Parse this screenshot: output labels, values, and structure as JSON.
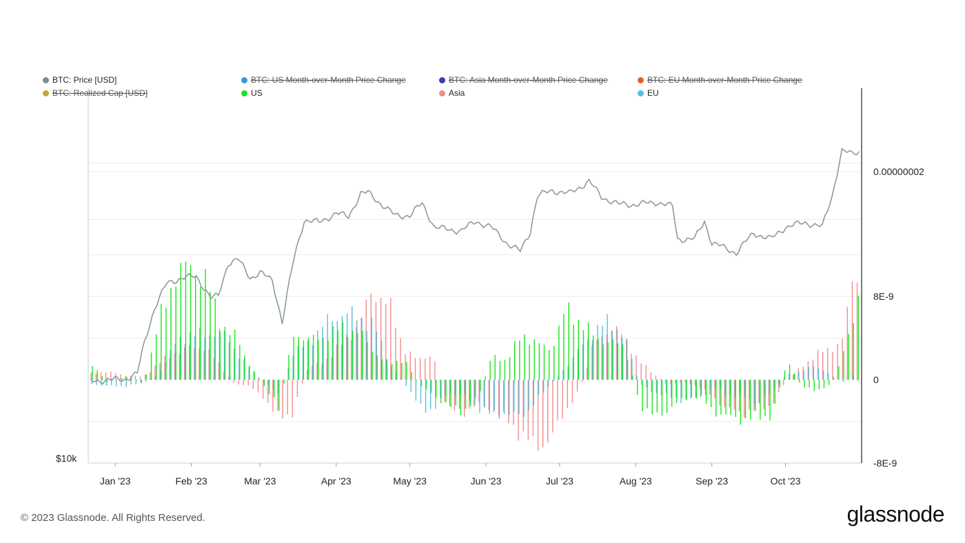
{
  "legend": {
    "items": [
      {
        "label": "BTC: Price [USD]",
        "color": "#7f8c8d",
        "struck": false
      },
      {
        "label": "BTC: US Month-over-Month Price Change",
        "color": "#3498db",
        "struck": true
      },
      {
        "label": "BTC: Asia Month-over-Month Price Change",
        "color": "#3b3bb8",
        "struck": true
      },
      {
        "label": "BTC: EU Month-over-Month Price Change",
        "color": "#e8601c",
        "struck": true
      },
      {
        "label": "BTC: Realized Cap [USD]",
        "color": "#c8a832",
        "struck": true
      },
      {
        "label": "US",
        "color": "#19e619",
        "struck": false
      },
      {
        "label": "Asia",
        "color": "#f08c8c",
        "struck": false
      },
      {
        "label": "EU",
        "color": "#5bbcdc",
        "struck": false
      }
    ]
  },
  "footer": {
    "copyright": "© 2023 Glassnode. All Rights Reserved.",
    "brand": "glassnode"
  },
  "chart_data": {
    "type": "bar",
    "title": "",
    "x_ticks": [
      "Jan '23",
      "Feb '23",
      "Mar '23",
      "Apr '23",
      "May '23",
      "Jun '23",
      "Jul '23",
      "Aug '23",
      "Sep '23",
      "Oct '23"
    ],
    "left_axis": {
      "label": "$10k",
      "scale": "log"
    },
    "right_axis": {
      "ticks": [
        "0.00000002",
        "8E-9",
        "0",
        "-8E-9"
      ],
      "range": [
        -8e-09,
        2.8e-08
      ]
    },
    "colors": {
      "price": "#8c9aa0",
      "us": "#19e619",
      "asia": "#f08c8c",
      "eu": "#5bbcdc",
      "grid": "#ececec",
      "axis": "#222222"
    },
    "price_series": {
      "name": "BTC: Price [USD]",
      "x": [
        "2022-12-22",
        "2022-12-28",
        "2023-01-05",
        "2023-01-10",
        "2023-01-13",
        "2023-01-17",
        "2023-01-22",
        "2023-01-28",
        "2023-02-03",
        "2023-02-09",
        "2023-02-12",
        "2023-02-16",
        "2023-02-20",
        "2023-02-25",
        "2023-03-01",
        "2023-03-06",
        "2023-03-10",
        "2023-03-12",
        "2023-03-15",
        "2023-03-19",
        "2023-03-25",
        "2023-04-01",
        "2023-04-06",
        "2023-04-11",
        "2023-04-14",
        "2023-04-19",
        "2023-04-25",
        "2023-05-01",
        "2023-05-06",
        "2023-05-11",
        "2023-05-16",
        "2023-05-22",
        "2023-05-28",
        "2023-06-03",
        "2023-06-10",
        "2023-06-15",
        "2023-06-19",
        "2023-06-22",
        "2023-06-28",
        "2023-07-05",
        "2023-07-13",
        "2023-07-18",
        "2023-07-25",
        "2023-08-01",
        "2023-08-10",
        "2023-08-16",
        "2023-08-18",
        "2023-08-25",
        "2023-08-29",
        "2023-09-01",
        "2023-09-11",
        "2023-09-18",
        "2023-09-25",
        "2023-10-01",
        "2023-10-09",
        "2023-10-16",
        "2023-10-20",
        "2023-10-24",
        "2023-10-28",
        "2023-10-31"
      ],
      "values": [
        16800,
        16850,
        16900,
        17200,
        19000,
        21100,
        22800,
        23200,
        23300,
        21800,
        21900,
        24300,
        24600,
        23200,
        23600,
        23000,
        20200,
        22000,
        24800,
        27800,
        27600,
        28400,
        28100,
        30200,
        30300,
        29300,
        28200,
        28200,
        29300,
        27200,
        27000,
        26900,
        27700,
        27200,
        25800,
        25200,
        26800,
        30000,
        30500,
        30200,
        31400,
        29900,
        29200,
        29200,
        29400,
        29000,
        26200,
        26200,
        27700,
        25900,
        25100,
        26700,
        26200,
        27200,
        27600,
        27200,
        30000,
        34500,
        34200,
        34500
      ]
    },
    "series": [
      {
        "name": "US",
        "x": [
          "2022-12-22",
          "2022-12-28",
          "2023-01-05",
          "2023-01-12",
          "2023-01-18",
          "2023-01-25",
          "2023-01-31",
          "2023-02-06",
          "2023-02-12",
          "2023-02-18",
          "2023-02-24",
          "2023-03-02",
          "2023-03-08",
          "2023-03-14",
          "2023-03-20",
          "2023-03-27",
          "2023-04-03",
          "2023-04-10",
          "2023-04-16",
          "2023-04-22",
          "2023-04-28",
          "2023-05-04",
          "2023-05-10",
          "2023-05-16",
          "2023-05-22",
          "2023-05-28",
          "2023-06-03",
          "2023-06-09",
          "2023-06-15",
          "2023-06-21",
          "2023-06-27",
          "2023-07-03",
          "2023-07-09",
          "2023-07-15",
          "2023-07-21",
          "2023-07-27",
          "2023-08-02",
          "2023-08-08",
          "2023-08-14",
          "2023-08-20",
          "2023-08-26",
          "2023-09-01",
          "2023-09-07",
          "2023-09-13",
          "2023-09-19",
          "2023-09-25",
          "2023-10-01",
          "2023-10-07",
          "2023-10-13",
          "2023-10-19",
          "2023-10-24",
          "2023-10-29",
          "2023-10-31"
        ],
        "values": [
          1.5e-09,
          -2e-10,
          3e-10,
          -4e-10,
          5.5e-09,
          1.02e-08,
          1.08e-08,
          9.8e-09,
          5.5e-09,
          4.2e-09,
          1.5e-09,
          -6e-10,
          -2.8e-09,
          4.5e-09,
          3.8e-09,
          4.2e-09,
          5e-09,
          4.5e-09,
          2.6e-09,
          1.5e-09,
          2e-09,
          -5e-10,
          -1.4e-09,
          -2.6e-09,
          -3e-09,
          -1.8e-09,
          2.4e-09,
          1.8e-09,
          4.5e-09,
          3.4e-09,
          3e-09,
          6.8e-09,
          5.5e-09,
          4e-09,
          3.6e-09,
          3.2e-09,
          -2.4e-09,
          -3.6e-09,
          -2.8e-09,
          -1.8e-09,
          -1.6e-09,
          -3e-09,
          -3.6e-09,
          -3.8e-09,
          -3.6e-09,
          -3.4e-09,
          1.8e-09,
          -7e-10,
          -1e-09,
          -5e-10,
          2.5e-09,
          7e-09,
          9.4e-09
        ]
      },
      {
        "name": "Asia",
        "x": [
          "2022-12-22",
          "2022-12-28",
          "2023-01-05",
          "2023-01-12",
          "2023-01-18",
          "2023-01-25",
          "2023-01-31",
          "2023-02-06",
          "2023-02-12",
          "2023-02-18",
          "2023-02-24",
          "2023-03-02",
          "2023-03-08",
          "2023-03-14",
          "2023-03-20",
          "2023-03-27",
          "2023-04-03",
          "2023-04-10",
          "2023-04-16",
          "2023-04-22",
          "2023-04-28",
          "2023-05-04",
          "2023-05-10",
          "2023-05-16",
          "2023-05-22",
          "2023-05-28",
          "2023-06-03",
          "2023-06-09",
          "2023-06-15",
          "2023-06-21",
          "2023-06-27",
          "2023-07-03",
          "2023-07-09",
          "2023-07-15",
          "2023-07-21",
          "2023-07-27",
          "2023-08-02",
          "2023-08-08",
          "2023-08-14",
          "2023-08-20",
          "2023-08-26",
          "2023-09-01",
          "2023-09-07",
          "2023-09-13",
          "2023-09-19",
          "2023-09-25",
          "2023-10-01",
          "2023-10-07",
          "2023-10-13",
          "2023-10-19",
          "2023-10-24",
          "2023-10-29",
          "2023-10-31"
        ],
        "values": [
          6e-10,
          8e-10,
          4e-10,
          3e-10,
          1.5e-09,
          2.6e-09,
          3e-09,
          3.2e-09,
          1.5e-09,
          -3e-10,
          -6e-10,
          -1.6e-09,
          -3.6e-09,
          -3.2e-09,
          1e-09,
          1.8e-09,
          3.4e-09,
          5.4e-09,
          8.6e-09,
          7.4e-09,
          3.2e-09,
          1.8e-09,
          2.6e-09,
          -2.8e-09,
          -3.2e-09,
          -2.4e-09,
          -2.8e-09,
          -3.8e-09,
          -5.2e-09,
          -6.4e-09,
          -5.8e-09,
          -3e-09,
          -1e-09,
          3.6e-09,
          5e-09,
          4.2e-09,
          1.8e-09,
          6e-10,
          -4e-10,
          -2e-10,
          -6e-10,
          -1.6e-09,
          -2.8e-09,
          -3.2e-09,
          -2.8e-09,
          -2.4e-09,
          -2e-10,
          1.2e-09,
          2.4e-09,
          3e-09,
          3.8e-09,
          1.05e-08,
          1.1e-08
        ]
      },
      {
        "name": "EU",
        "x": [
          "2022-12-22",
          "2022-12-28",
          "2023-01-05",
          "2023-01-12",
          "2023-01-18",
          "2023-01-25",
          "2023-01-31",
          "2023-02-06",
          "2023-02-12",
          "2023-02-18",
          "2023-02-24",
          "2023-03-02",
          "2023-03-08",
          "2023-03-14",
          "2023-03-20",
          "2023-03-27",
          "2023-04-03",
          "2023-04-10",
          "2023-04-16",
          "2023-04-22",
          "2023-04-28",
          "2023-05-04",
          "2023-05-10",
          "2023-05-16",
          "2023-05-22",
          "2023-05-28",
          "2023-06-03",
          "2023-06-09",
          "2023-06-15",
          "2023-06-21",
          "2023-06-27",
          "2023-07-03",
          "2023-07-09",
          "2023-07-15",
          "2023-07-21",
          "2023-07-27",
          "2023-08-02",
          "2023-08-08",
          "2023-08-14",
          "2023-08-20",
          "2023-08-26",
          "2023-09-01",
          "2023-09-07",
          "2023-09-13",
          "2023-09-19",
          "2023-09-25",
          "2023-10-01",
          "2023-10-07",
          "2023-10-13",
          "2023-10-19",
          "2023-10-24",
          "2023-10-29",
          "2023-10-31"
        ],
        "values": [
          -4e-10,
          -6e-10,
          -6e-10,
          -3e-10,
          6e-10,
          3.4e-09,
          4.5e-09,
          4.2e-09,
          4.8e-09,
          3e-09,
          1.2e-09,
          -2e-10,
          -1.2e-09,
          2.5e-09,
          3.5e-09,
          5.4e-09,
          6.4e-09,
          6e-09,
          5.2e-09,
          1.6e-09,
          -2e-10,
          -2.4e-09,
          -3e-09,
          -1.2e-09,
          -1.4e-09,
          -2.6e-09,
          -3.4e-09,
          -3.2e-09,
          -3.6e-09,
          -2e-09,
          -4e-10,
          1.2e-09,
          3e-09,
          4.8e-09,
          5.6e-09,
          4.2e-09,
          -4e-10,
          -1.2e-09,
          -1.6e-09,
          -2e-09,
          -1.8e-09,
          -8e-10,
          -1.4e-09,
          -1.6e-09,
          -2.2e-09,
          -1.2e-09,
          5e-10,
          8e-10,
          1.4e-09,
          4e-10,
          -2e-10,
          6e-10,
          -8e-10
        ]
      }
    ],
    "grid": true,
    "legend_position": "top"
  }
}
